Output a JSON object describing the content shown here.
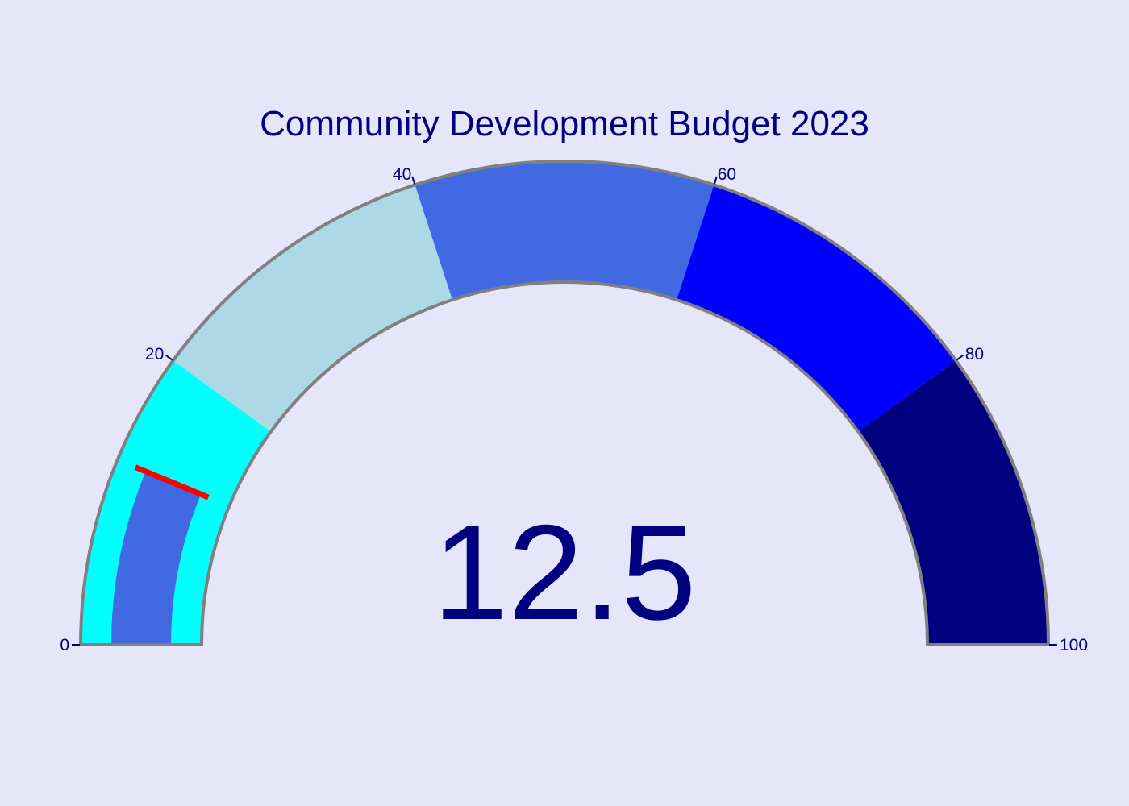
{
  "chart_data": {
    "type": "gauge",
    "title": "Community Development Budget 2023",
    "value": 12.5,
    "value_text": "12.5",
    "range": [
      0,
      100
    ],
    "ticks": [
      0,
      20,
      40,
      60,
      80,
      100
    ],
    "tick_labels": [
      "0",
      "20",
      "40",
      "60",
      "80",
      "100"
    ],
    "steps": [
      {
        "range": [
          0,
          20
        ],
        "color": "#00ffff"
      },
      {
        "range": [
          20,
          40
        ],
        "color": "#add8e6"
      },
      {
        "range": [
          40,
          60
        ],
        "color": "#4169e1"
      },
      {
        "range": [
          60,
          80
        ],
        "color": "#0000ff"
      },
      {
        "range": [
          80,
          100
        ],
        "color": "#000080"
      }
    ],
    "bar_color": "#4169e1",
    "threshold": {
      "value": 12.5,
      "color": "#ff0000"
    },
    "border_color": "#808080",
    "text_color": "#000080",
    "background": "#e6e6fa"
  }
}
